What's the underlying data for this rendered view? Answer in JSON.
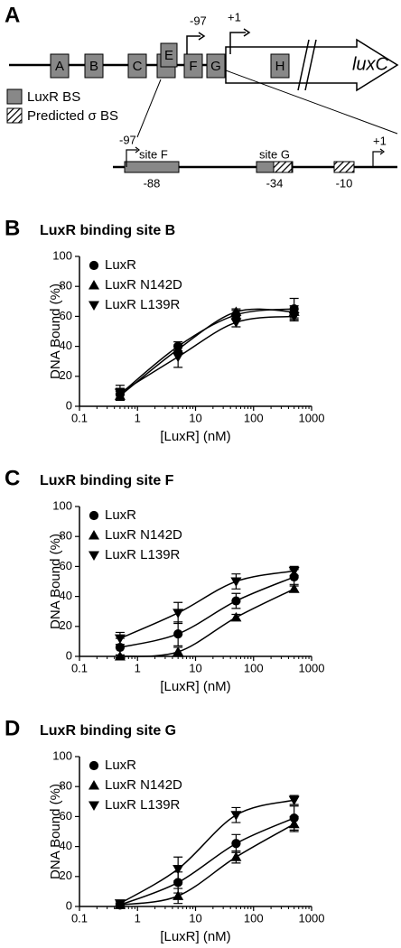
{
  "panel_a": {
    "label": "A",
    "boxes": [
      "A",
      "B",
      "C",
      "E",
      "F",
      "G",
      "H"
    ],
    "gene": "luxC",
    "tss_labels": [
      "-97",
      "+1"
    ],
    "legend": [
      "LuxR BS",
      "Predicted σ BS"
    ],
    "zoom": {
      "start": "-97",
      "sites": [
        "site F",
        "site G"
      ],
      "end": "+1",
      "positions": [
        "-88",
        "-34",
        "-10"
      ]
    }
  },
  "chart_data": [
    {
      "type": "scatter",
      "panel": "B",
      "title": "LuxR binding site B",
      "xlabel": "[LuxR] (nM)",
      "ylabel": "DNA Bound (%)",
      "xscale": "log",
      "xlim": [
        0.1,
        1000
      ],
      "xticks": [
        0.1,
        1,
        10,
        100,
        1000
      ],
      "ylim": [
        0,
        100
      ],
      "yticks": [
        0,
        20,
        40,
        60,
        80,
        100
      ],
      "x": [
        0.5,
        5,
        50,
        500
      ],
      "series": [
        {
          "name": "LuxR",
          "color": "#000000",
          "marker": "circle",
          "values": [
            8,
            40,
            61,
            65
          ],
          "errors": [
            4,
            3,
            3,
            7
          ]
        },
        {
          "name": "LuxR N142D",
          "color": "#000000",
          "marker": "triangle-up",
          "values": [
            7,
            38,
            63,
            63
          ],
          "errors": [
            3,
            3,
            2,
            4
          ]
        },
        {
          "name": "LuxR L139R",
          "color": "#000000",
          "marker": "triangle-down",
          "values": [
            9,
            33,
            56,
            60
          ],
          "errors": [
            5,
            7,
            3,
            3
          ]
        }
      ]
    },
    {
      "type": "scatter",
      "panel": "C",
      "title": "LuxR binding site F",
      "xlabel": "[LuxR] (nM)",
      "ylabel": "DNA Bound (%)",
      "xscale": "log",
      "xlim": [
        0.1,
        1000
      ],
      "xticks": [
        0.1,
        1,
        10,
        100,
        1000
      ],
      "ylim": [
        0,
        100
      ],
      "yticks": [
        0,
        20,
        40,
        60,
        80,
        100
      ],
      "x": [
        0.5,
        5,
        50,
        500
      ],
      "series": [
        {
          "name": "LuxR",
          "color": "#000000",
          "marker": "circle",
          "values": [
            6,
            15,
            37,
            53
          ],
          "errors": [
            6,
            8,
            5,
            5
          ]
        },
        {
          "name": "LuxR N142D",
          "color": "#000000",
          "marker": "triangle-up",
          "values": [
            0,
            3,
            26,
            45
          ],
          "errors": [
            1,
            3,
            2,
            2
          ]
        },
        {
          "name": "LuxR L139R",
          "color": "#000000",
          "marker": "triangle-down",
          "values": [
            12,
            29,
            50,
            57
          ],
          "errors": [
            4,
            7,
            5,
            3
          ]
        }
      ]
    },
    {
      "type": "scatter",
      "panel": "D",
      "title": "LuxR binding site G",
      "xlabel": "[LuxR] (nM)",
      "ylabel": "DNA Bound (%)",
      "xscale": "log",
      "xlim": [
        0.1,
        1000
      ],
      "xticks": [
        0.1,
        1,
        10,
        100,
        1000
      ],
      "ylim": [
        0,
        100
      ],
      "yticks": [
        0,
        20,
        40,
        60,
        80,
        100
      ],
      "x": [
        0.5,
        5,
        50,
        500
      ],
      "series": [
        {
          "name": "LuxR",
          "color": "#000000",
          "marker": "circle",
          "values": [
            1,
            16,
            42,
            59
          ],
          "errors": [
            1,
            7,
            6,
            8
          ]
        },
        {
          "name": "LuxR N142D",
          "color": "#000000",
          "marker": "triangle-up",
          "values": [
            1,
            7,
            33,
            55
          ],
          "errors": [
            1,
            5,
            4,
            5
          ]
        },
        {
          "name": "LuxR L139R",
          "color": "#000000",
          "marker": "triangle-down",
          "values": [
            2,
            25,
            61,
            71
          ],
          "errors": [
            1,
            8,
            5,
            3
          ]
        }
      ]
    }
  ]
}
